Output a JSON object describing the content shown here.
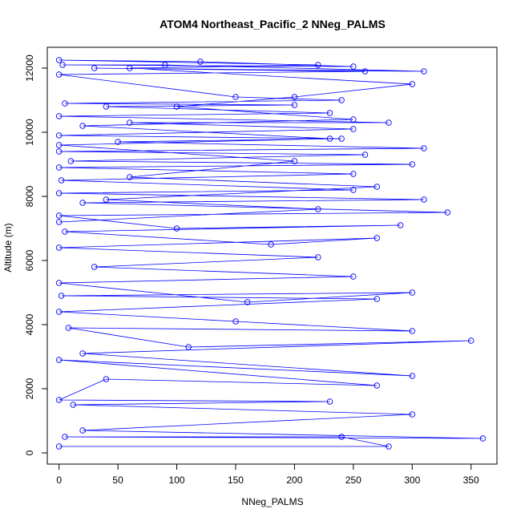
{
  "chart_data": {
    "type": "line",
    "title": "ATOM4 Northeast_Pacific_2 NNeg_PALMS",
    "xlabel": "NNeg_PALMS",
    "ylabel": "Altitude (m)",
    "xlim": [
      -10,
      372
    ],
    "ylim": [
      -350,
      12650
    ],
    "x_ticks": [
      0,
      50,
      100,
      150,
      200,
      250,
      300,
      350
    ],
    "y_ticks": [
      0,
      2000,
      4000,
      6000,
      8000,
      10000,
      12000
    ],
    "series_color": "#0000ff",
    "markers": "open-circle",
    "series": [
      {
        "x": [
          0,
          280,
          240,
          5,
          360,
          20,
          300,
          12,
          230,
          0,
          40,
          270,
          0,
          300,
          20,
          350,
          110,
          8,
          300,
          150,
          0,
          270,
          2,
          300,
          160,
          0,
          250,
          30,
          220,
          0,
          270,
          180,
          5,
          290,
          100,
          0,
          330,
          20,
          310,
          0,
          250,
          2,
          250,
          0,
          300,
          10,
          260,
          0,
          310,
          50,
          240,
          0,
          250,
          60,
          280,
          0,
          230,
          40,
          200,
          5,
          240,
          150,
          0,
          260,
          30,
          310,
          90,
          3,
          250,
          120,
          0,
          220,
          60,
          300,
          200,
          100,
          250,
          20,
          230,
          0,
          200,
          60,
          270,
          40,
          220,
          0
        ],
        "y": [
          200,
          200,
          500,
          500,
          450,
          700,
          1200,
          1500,
          1600,
          1650,
          2300,
          2100,
          2900,
          2400,
          3100,
          3500,
          3300,
          3900,
          3800,
          4100,
          4400,
          4800,
          4900,
          5000,
          4700,
          5300,
          5500,
          5800,
          6100,
          6400,
          6700,
          6500,
          6900,
          7100,
          7000,
          7400,
          7500,
          7800,
          7900,
          8100,
          8200,
          8500,
          8700,
          8900,
          9000,
          9100,
          9300,
          9400,
          9500,
          9700,
          9800,
          9900,
          10100,
          10300,
          10300,
          10500,
          10600,
          10800,
          10850,
          10900,
          11000,
          11100,
          11800,
          11900,
          12000,
          11900,
          12100,
          12100,
          12050,
          12200,
          12250,
          12100,
          12000,
          11500,
          11100,
          10800,
          10400,
          10200,
          9800,
          9600,
          9100,
          8600,
          8300,
          7900,
          7600,
          7200
        ]
      }
    ]
  }
}
